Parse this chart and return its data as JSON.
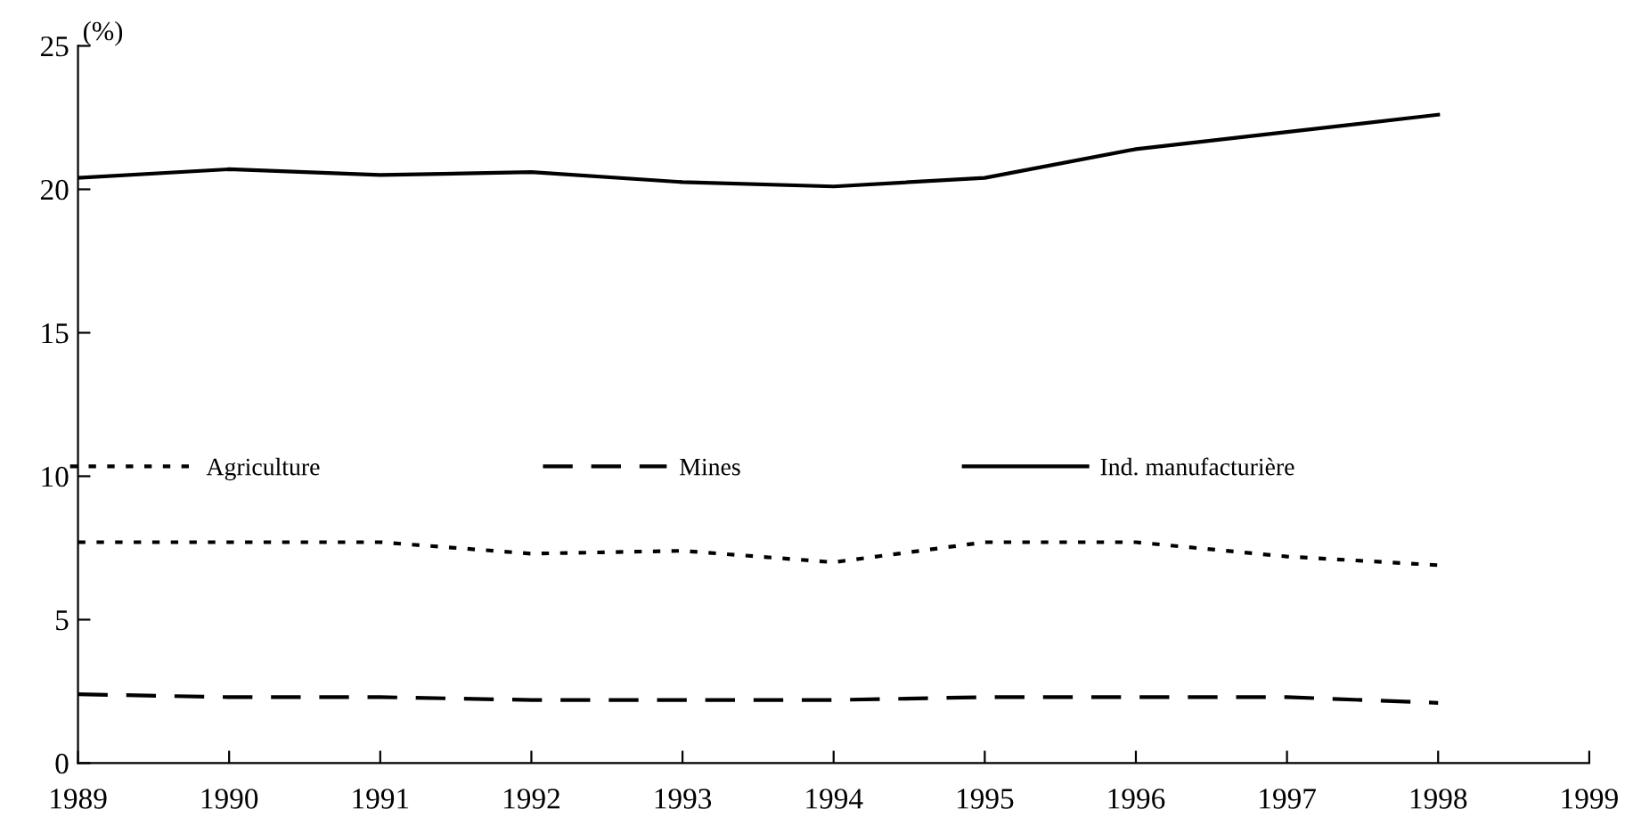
{
  "chart_data": {
    "type": "line",
    "ylabel": "(%)",
    "x": [
      1989,
      1990,
      1991,
      1992,
      1993,
      1994,
      1995,
      1996,
      1997,
      1998
    ],
    "series": [
      {
        "name": "Agriculture",
        "color": "#000000",
        "line_style": "dotted",
        "values": [
          7.7,
          7.7,
          7.7,
          7.3,
          7.4,
          7.0,
          7.7,
          7.7,
          7.2,
          6.9
        ]
      },
      {
        "name": "Mines",
        "color": "#000000",
        "line_style": "dashed",
        "values": [
          2.4,
          2.3,
          2.3,
          2.2,
          2.2,
          2.2,
          2.3,
          2.3,
          2.3,
          2.1
        ]
      },
      {
        "name": "Ind. manufacturière",
        "color": "#000000",
        "line_style": "solid",
        "values": [
          20.4,
          20.7,
          20.5,
          20.6,
          20.25,
          20.1,
          20.4,
          21.4,
          22.0,
          22.6
        ]
      }
    ],
    "xlim": [
      1989,
      1999
    ],
    "xticks": [
      1989,
      1990,
      1991,
      1992,
      1993,
      1994,
      1995,
      1996,
      1997,
      1998,
      1999
    ],
    "ylim": [
      0,
      25
    ],
    "yticks": [
      0,
      5,
      10,
      15,
      20,
      25
    ],
    "legend": "center",
    "grid": false
  }
}
